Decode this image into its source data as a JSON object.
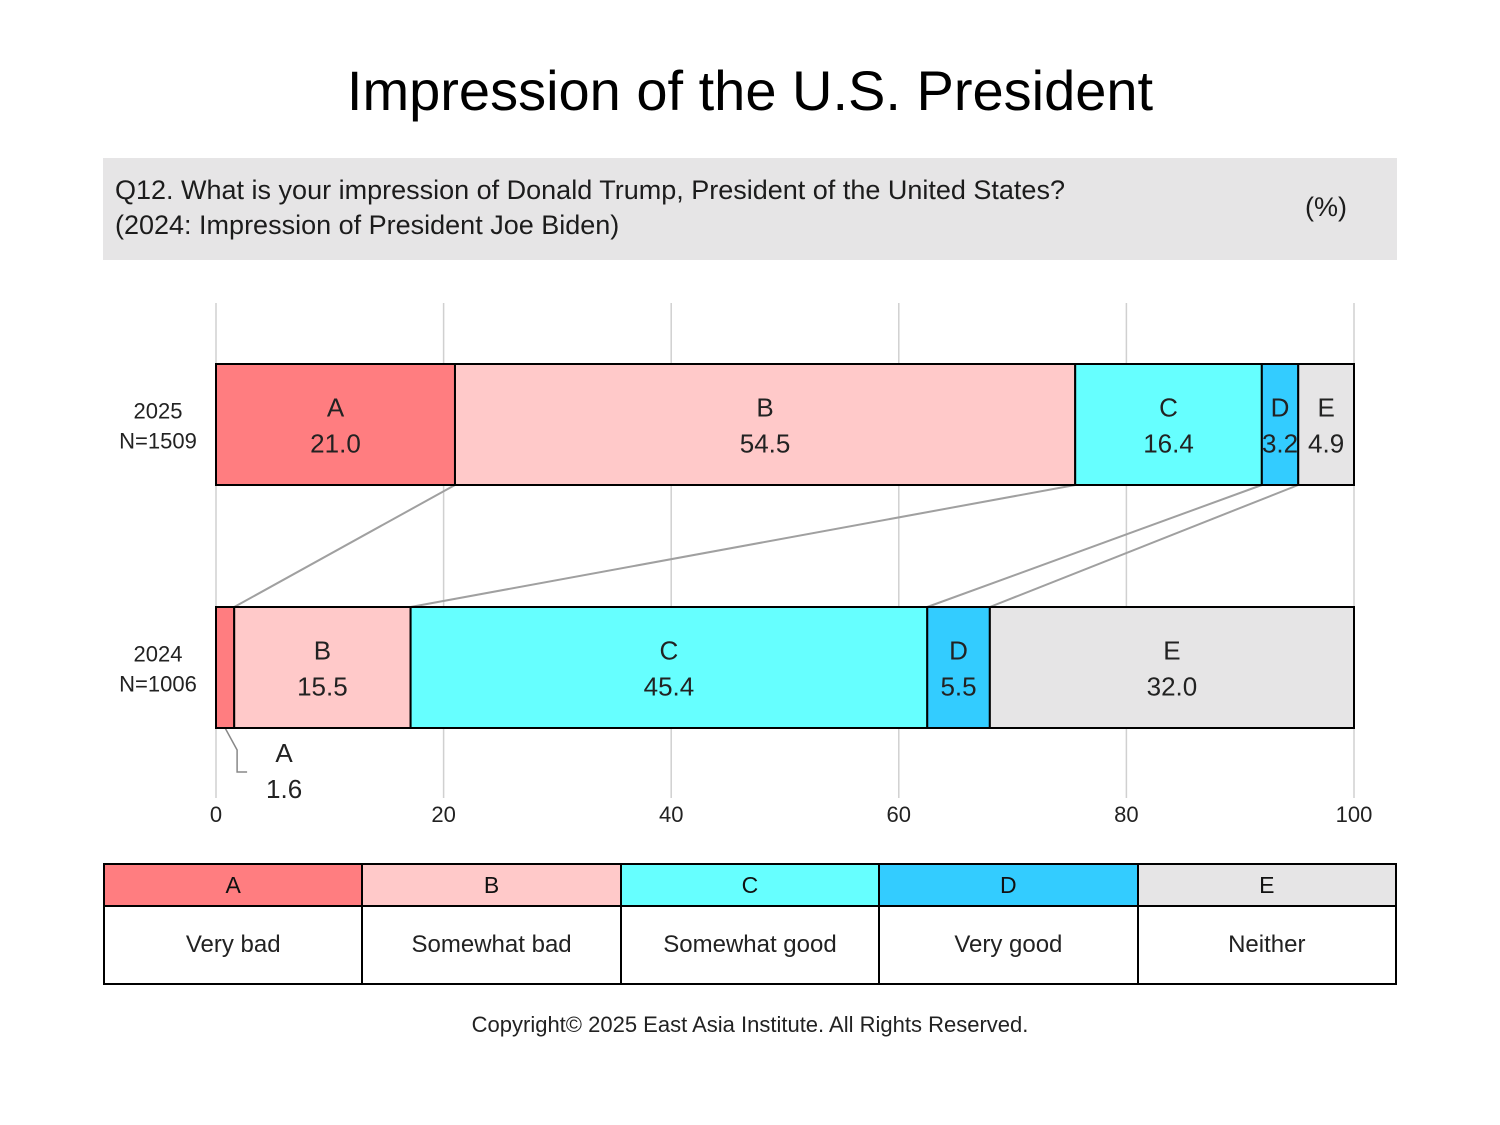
{
  "title": "Impression of the U.S. President",
  "question": {
    "line1": "Q12. What is your impression of Donald Trump, President of the United States?",
    "line2": "(2024: Impression of President Joe Biden)",
    "unit": "(%)"
  },
  "chart_data": {
    "type": "bar",
    "orientation": "horizontal",
    "stacked": true,
    "xlim": [
      0,
      100
    ],
    "ticks": [
      0,
      20,
      40,
      60,
      80,
      100
    ],
    "tick_labels": [
      "0",
      "20",
      "40",
      "60",
      "80",
      "100"
    ],
    "grid": true,
    "categories": [
      {
        "line1": "2025",
        "line2": "N=1509"
      },
      {
        "line1": "2024",
        "line2": "N=1006"
      }
    ],
    "series": [
      {
        "code": "A",
        "name": "Very bad",
        "color": "#ff7d80",
        "values": [
          21.0,
          1.6
        ],
        "labels": [
          "21.0",
          "1.6"
        ]
      },
      {
        "code": "B",
        "name": "Somewhat bad",
        "color": "#ffc9c9",
        "values": [
          54.5,
          15.5
        ],
        "labels": [
          "54.5",
          "15.5"
        ]
      },
      {
        "code": "C",
        "name": "Somewhat good",
        "color": "#66ffff",
        "values": [
          16.4,
          45.4
        ],
        "labels": [
          "16.4",
          "45.4"
        ]
      },
      {
        "code": "D",
        "name": "Very good",
        "color": "#33ccff",
        "values": [
          3.2,
          5.5
        ],
        "labels": [
          "3.2",
          "5.5"
        ]
      },
      {
        "code": "E",
        "name": "Neither",
        "color": "#e6e5e6",
        "values": [
          4.9,
          32.0
        ],
        "labels": [
          "4.9",
          "32.0"
        ]
      }
    ],
    "legend": [
      {
        "code": "A",
        "label": "Very bad"
      },
      {
        "code": "B",
        "label": "Somewhat bad"
      },
      {
        "code": "C",
        "label": "Somewhat good"
      },
      {
        "code": "D",
        "label": "Very good"
      },
      {
        "code": "E",
        "label": "Neither"
      }
    ]
  },
  "copyright": "Copyright© 2025 East Asia Institute. All Rights Reserved."
}
